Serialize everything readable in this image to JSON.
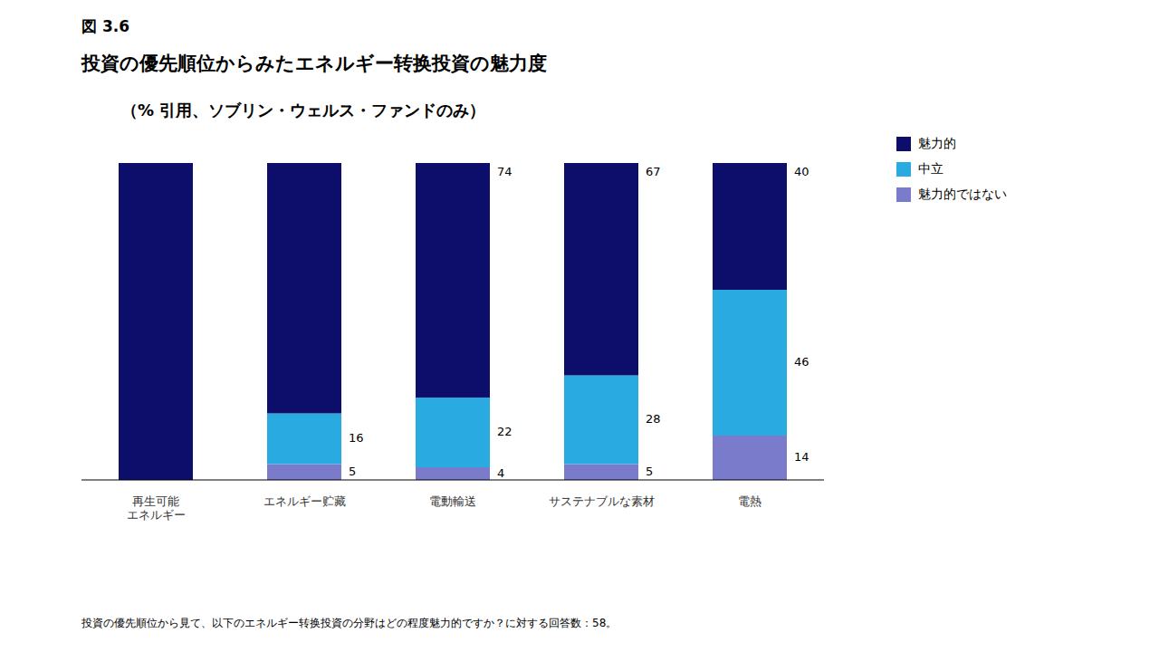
{
  "chart_data": {
    "type": "bar",
    "stacked": true,
    "title": "投資の優先順位からみたエネルギー转换投資の魅力度",
    "subtitle": "（% 引用、ソブリン・ウェルス・ファンドのみ）",
    "annotations": [
      "図 3.6",
      "投資の優先順位から見て、以下のエネルギー转换投資の分野はどの程度魅力的ですか？に対する回答数：58。"
    ],
    "categories": [
      "再生可能\nエネルギー",
      "エネルギー贮藏",
      "電動輸送",
      "サステナブルな素材",
      "電熱"
    ],
    "series": [
      {
        "name": "魅力的ではない",
        "color": "#7b7bcc",
        "values": [
          0,
          5,
          4,
          5,
          14
        ],
        "value_labels": [
          null,
          "5",
          "4",
          "5",
          "14"
        ]
      },
      {
        "name": "中立",
        "color": "#29abe2",
        "values": [
          0,
          16,
          22,
          28,
          46
        ],
        "value_labels": [
          null,
          "16",
          "22",
          "28",
          "46"
        ]
      },
      {
        "name": "魅力的",
        "color": "#0d0d6b",
        "values": [
          100,
          79,
          74,
          67,
          40
        ],
        "value_labels": [
          null,
          null,
          "74",
          "67",
          "40"
        ]
      }
    ],
    "ylim": [
      0,
      100
    ],
    "data_labels": true,
    "tick_labels": "x",
    "grid": false,
    "legend": "upper right"
  }
}
